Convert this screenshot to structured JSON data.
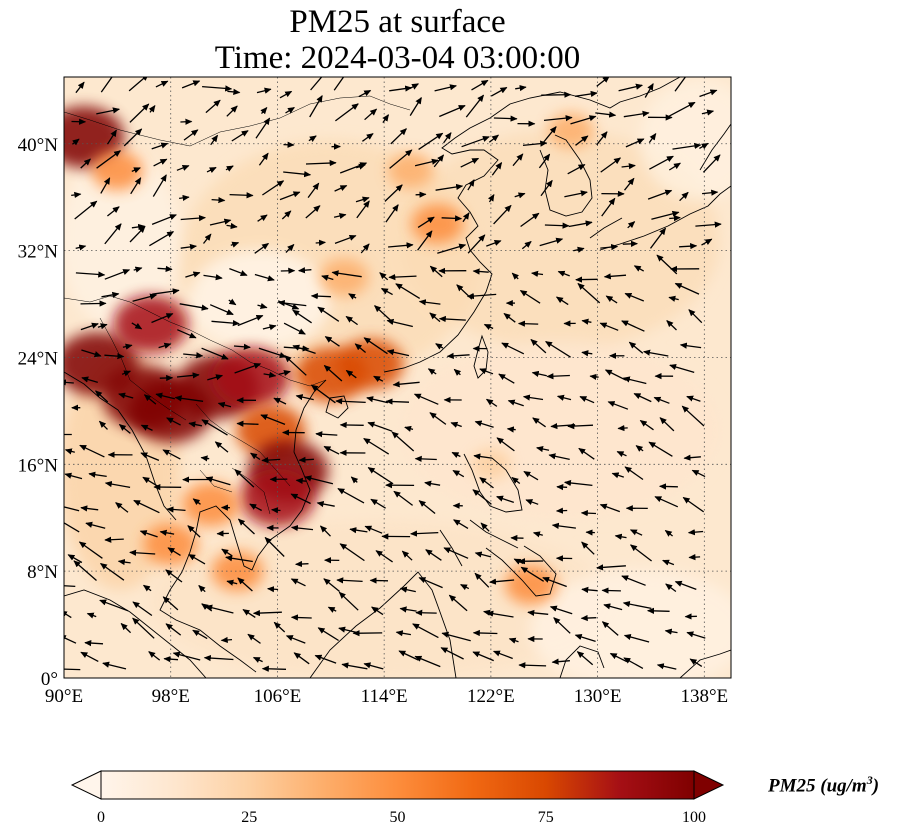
{
  "title": {
    "line1": "PM25 at surface",
    "line2": "Time: 2024-03-04 03:00:00"
  },
  "map": {
    "lon_range": [
      90,
      140
    ],
    "lat_range": [
      0,
      45
    ],
    "lon_ticks": [
      {
        "value": 90,
        "label": "90°E"
      },
      {
        "value": 98,
        "label": "98°E"
      },
      {
        "value": 106,
        "label": "106°E"
      },
      {
        "value": 114,
        "label": "114°E"
      },
      {
        "value": 122,
        "label": "122°E"
      },
      {
        "value": 130,
        "label": "130°E"
      },
      {
        "value": 138,
        "label": "138°E"
      }
    ],
    "lat_ticks": [
      {
        "value": 0,
        "label": "0°"
      },
      {
        "value": 8,
        "label": "8°N"
      },
      {
        "value": 16,
        "label": "16°N"
      },
      {
        "value": 24,
        "label": "24°N"
      },
      {
        "value": 32,
        "label": "32°N"
      },
      {
        "value": 40,
        "label": "40°N"
      }
    ],
    "gridlines": "dotted",
    "variable": "PM25",
    "wind_vectors": "shown"
  },
  "colorbar": {
    "min": 0,
    "max": 100,
    "ticks": [
      "0",
      "25",
      "50",
      "75",
      "100"
    ],
    "extend": "max",
    "colors": [
      "#fff5eb",
      "#fee6ce",
      "#fdd0a2",
      "#fdae6b",
      "#fd8d3c",
      "#f16913",
      "#d94801",
      "#a50f15",
      "#7f0000"
    ],
    "label_main": "PM25 (ug/m",
    "label_sup": "3",
    "label_end": ")"
  },
  "pollution_hotspots": [
    {
      "lon": 91.5,
      "lat": 40.5,
      "value": 95
    },
    {
      "lon": 92.5,
      "lat": 23.5,
      "value": 100
    },
    {
      "lon": 96.5,
      "lat": 26.5,
      "value": 85
    },
    {
      "lon": 96,
      "lat": 21,
      "value": 100
    },
    {
      "lon": 98,
      "lat": 20,
      "value": 100
    },
    {
      "lon": 101.5,
      "lat": 21.8,
      "value": 100
    },
    {
      "lon": 104,
      "lat": 22.5,
      "value": 90
    },
    {
      "lon": 105.5,
      "lat": 18.5,
      "value": 75
    },
    {
      "lon": 106.8,
      "lat": 15.5,
      "value": 95
    },
    {
      "lon": 106,
      "lat": 13.5,
      "value": 85
    },
    {
      "lon": 110,
      "lat": 22.7,
      "value": 80
    },
    {
      "lon": 113,
      "lat": 23.5,
      "value": 70
    },
    {
      "lon": 101,
      "lat": 13,
      "value": 55
    },
    {
      "lon": 98,
      "lat": 10,
      "value": 50
    },
    {
      "lon": 103,
      "lat": 8,
      "value": 45
    },
    {
      "lon": 118,
      "lat": 34,
      "value": 45
    },
    {
      "lon": 111,
      "lat": 30,
      "value": 40
    },
    {
      "lon": 116,
      "lat": 38,
      "value": 35
    },
    {
      "lon": 94,
      "lat": 38,
      "value": 45
    },
    {
      "lon": 125,
      "lat": 7,
      "value": 45
    },
    {
      "lon": 128,
      "lat": 41,
      "value": 35
    },
    {
      "lon": 122,
      "lat": 16,
      "value": 25
    }
  ]
}
